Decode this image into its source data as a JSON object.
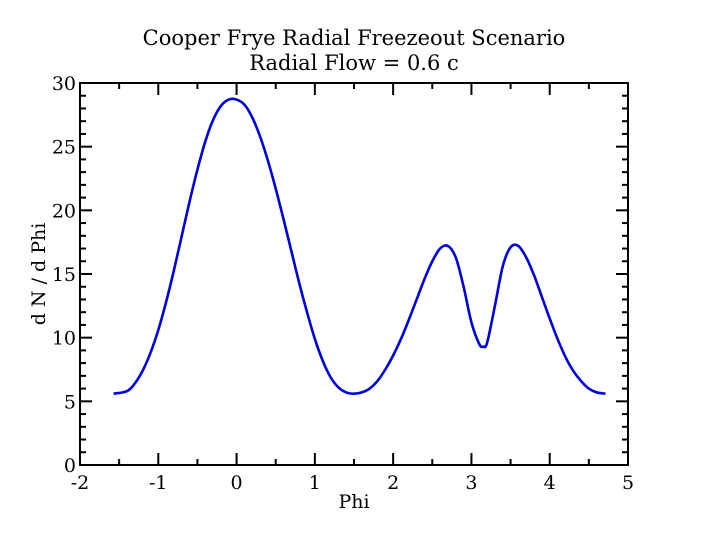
{
  "chart_data": {
    "type": "line",
    "title": "Cooper Frye Radial Freezeout Scenario",
    "subtitle": "Radial Flow = 0.6 c",
    "xlabel": "Phi",
    "ylabel": "d N / d Phi",
    "xlim": [
      -2,
      5
    ],
    "ylim": [
      0,
      30
    ],
    "xticks": [
      -2,
      -1,
      0,
      1,
      2,
      3,
      4,
      5
    ],
    "yticks": [
      0,
      5,
      10,
      15,
      20,
      25,
      30
    ],
    "grid": false,
    "legend": "none",
    "series": [
      {
        "color": "#0000dd",
        "x": [
          -1.571,
          -1.4,
          -1.3,
          -1.2,
          -1.1,
          -1.0,
          -0.9,
          -0.8,
          -0.7,
          -0.6,
          -0.5,
          -0.4,
          -0.3,
          -0.2,
          -0.1,
          0.0,
          0.1,
          0.2,
          0.3,
          0.4,
          0.5,
          0.6,
          0.7,
          0.8,
          0.9,
          1.0,
          1.1,
          1.2,
          1.3,
          1.4,
          1.5,
          1.6,
          1.7,
          1.8,
          1.9,
          2.0,
          2.1,
          2.2,
          2.3,
          2.4,
          2.5,
          2.6,
          2.7,
          2.8,
          2.9,
          3.0,
          3.1,
          3.15,
          3.2,
          3.3,
          3.4,
          3.5,
          3.6,
          3.7,
          3.8,
          3.9,
          4.0,
          4.1,
          4.2,
          4.3,
          4.4,
          4.5,
          4.6,
          4.712
        ],
        "y": [
          5.6,
          5.8,
          6.4,
          7.4,
          8.8,
          10.6,
          12.8,
          15.3,
          18.0,
          20.7,
          23.2,
          25.4,
          27.1,
          28.2,
          28.7,
          28.7,
          28.3,
          27.3,
          25.8,
          23.9,
          21.7,
          19.3,
          16.8,
          14.3,
          12.0,
          9.9,
          8.2,
          6.9,
          6.1,
          5.7,
          5.6,
          5.7,
          6.0,
          6.6,
          7.5,
          8.6,
          9.9,
          11.4,
          13.0,
          14.6,
          16.0,
          17.0,
          17.2,
          16.3,
          14.0,
          11.2,
          9.5,
          9.3,
          9.6,
          12.5,
          15.6,
          17.1,
          17.2,
          16.3,
          14.9,
          13.2,
          11.5,
          9.9,
          8.5,
          7.4,
          6.6,
          6.0,
          5.7,
          5.6
        ]
      }
    ]
  }
}
